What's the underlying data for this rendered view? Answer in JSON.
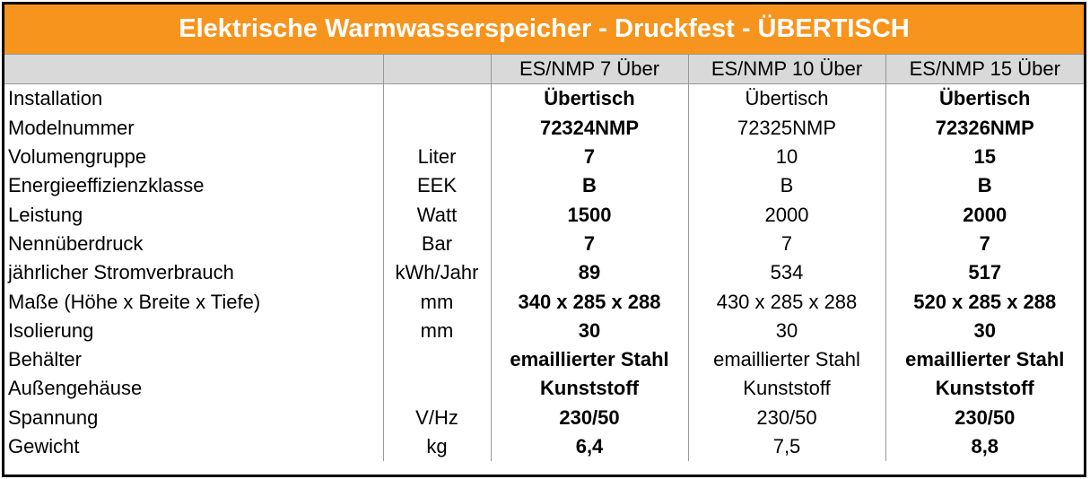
{
  "header": {
    "title": "Elektrische Warmwasserspeicher - Druckfest - ÜBERTISCH"
  },
  "table": {
    "columns": [
      "ES/NMP 7 Über",
      "ES/NMP 10 Über",
      "ES/NMP 15 Über"
    ],
    "rows": [
      {
        "label": "Installation",
        "values": [
          "Übertisch",
          "Übertisch",
          "Übertisch"
        ]
      },
      {
        "label": "Modelnummer",
        "values": [
          "72324NMP",
          "72325NMP",
          "72326NMP"
        ]
      },
      {
        "label": "Volumengruppe",
        "unit": "Liter",
        "values": [
          "7",
          "10",
          "15"
        ]
      },
      {
        "label": "Energieeffizienzklasse",
        "unit": "EEK",
        "values": [
          "B",
          "B",
          "B"
        ]
      },
      {
        "label": "Leistung",
        "unit": "Watt",
        "values": [
          "1500",
          "2000",
          "2000"
        ]
      },
      {
        "label": "Nennüberdruck",
        "unit": "Bar",
        "values": [
          "7",
          "7",
          "7"
        ]
      },
      {
        "label": "jährlicher Stromverbrauch",
        "unit": "kWh/Jahr",
        "values": [
          "89",
          "534",
          "517"
        ]
      },
      {
        "label": "Maße (Höhe x Breite x Tiefe)",
        "unit": "mm",
        "values": [
          "340 x 285 x 288",
          "430 x 285 x 288",
          "520 x 285 x 288"
        ]
      },
      {
        "label": "Isolierung",
        "unit": "mm",
        "values": [
          "30",
          "30",
          "30"
        ]
      },
      {
        "label": "Behälter",
        "values": [
          "emaillierter Stahl",
          "emaillierter Stahl",
          "emaillierter Stahl"
        ]
      },
      {
        "label": "Außengehäuse",
        "values": [
          "Kunststoff",
          "Kunststoff",
          "Kunststoff"
        ]
      },
      {
        "label": "Spannung",
        "unit": "V/Hz",
        "values": [
          "230/50",
          "230/50",
          "230/50"
        ]
      },
      {
        "label": "Gewicht",
        "unit": "kg",
        "values": [
          "6,4",
          "7,5",
          "8,8"
        ]
      }
    ]
  }
}
